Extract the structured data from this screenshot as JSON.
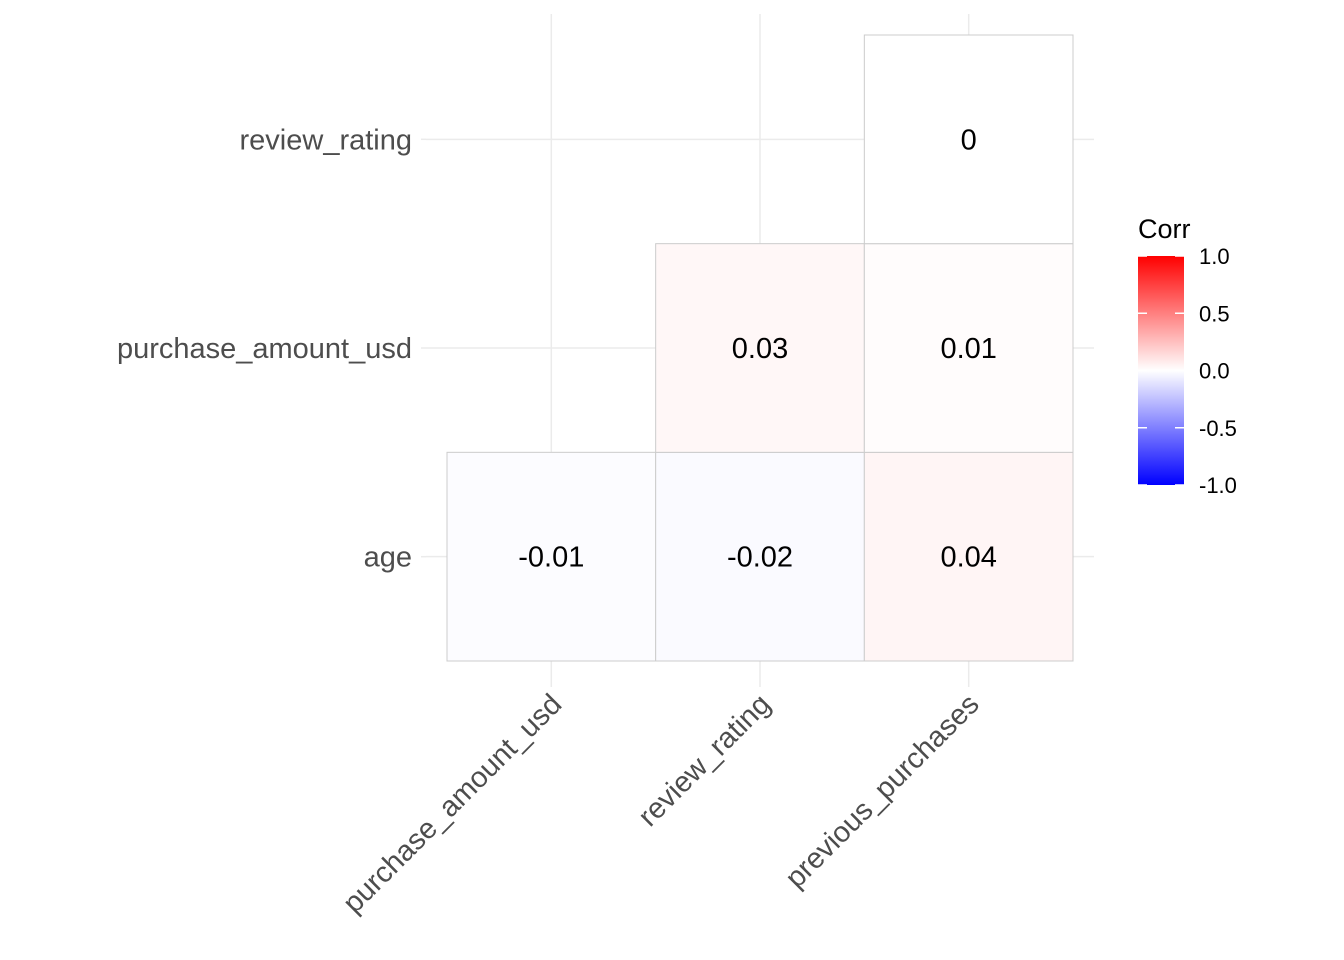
{
  "chart_data": {
    "type": "heatmap",
    "x_categories": [
      "purchase_amount_usd",
      "review_rating",
      "previous_purchases"
    ],
    "y_categories": [
      "age",
      "purchase_amount_usd",
      "review_rating"
    ],
    "cells": [
      {
        "x": "purchase_amount_usd",
        "y": "age",
        "value": -0.01,
        "label": "-0.01"
      },
      {
        "x": "review_rating",
        "y": "age",
        "value": -0.02,
        "label": "-0.02"
      },
      {
        "x": "previous_purchases",
        "y": "age",
        "value": 0.04,
        "label": "0.04"
      },
      {
        "x": "review_rating",
        "y": "purchase_amount_usd",
        "value": 0.03,
        "label": "0.03"
      },
      {
        "x": "previous_purchases",
        "y": "purchase_amount_usd",
        "value": 0.01,
        "label": "0.01"
      },
      {
        "x": "previous_purchases",
        "y": "review_rating",
        "value": 0.0,
        "label": "0"
      }
    ],
    "legend": {
      "title": "Corr",
      "range": [
        -1,
        1
      ],
      "ticks": [
        "1.0",
        "0.5",
        "0.0",
        "-0.5",
        "-1.0"
      ],
      "tick_values": [
        1.0,
        0.5,
        0.0,
        -0.5,
        -1.0
      ],
      "colors": {
        "low": "#0000ff",
        "mid": "#ffffff",
        "high": "#ff0000"
      },
      "placement": "right"
    },
    "grid": true,
    "x_tick_rotation": 45
  }
}
